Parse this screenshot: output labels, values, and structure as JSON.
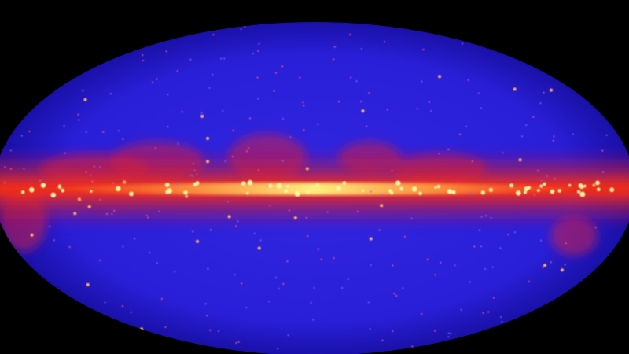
{
  "image": {
    "subject": "all-sky-map",
    "colors": {
      "background": "#000000",
      "sky": "#2a1fd8",
      "sky_edge": "#1a10a8",
      "band_outer": "#d8202a",
      "band_mid": "#ff3a10",
      "band_core": "#ffe066",
      "sources": "#ff6a6a"
    }
  }
}
